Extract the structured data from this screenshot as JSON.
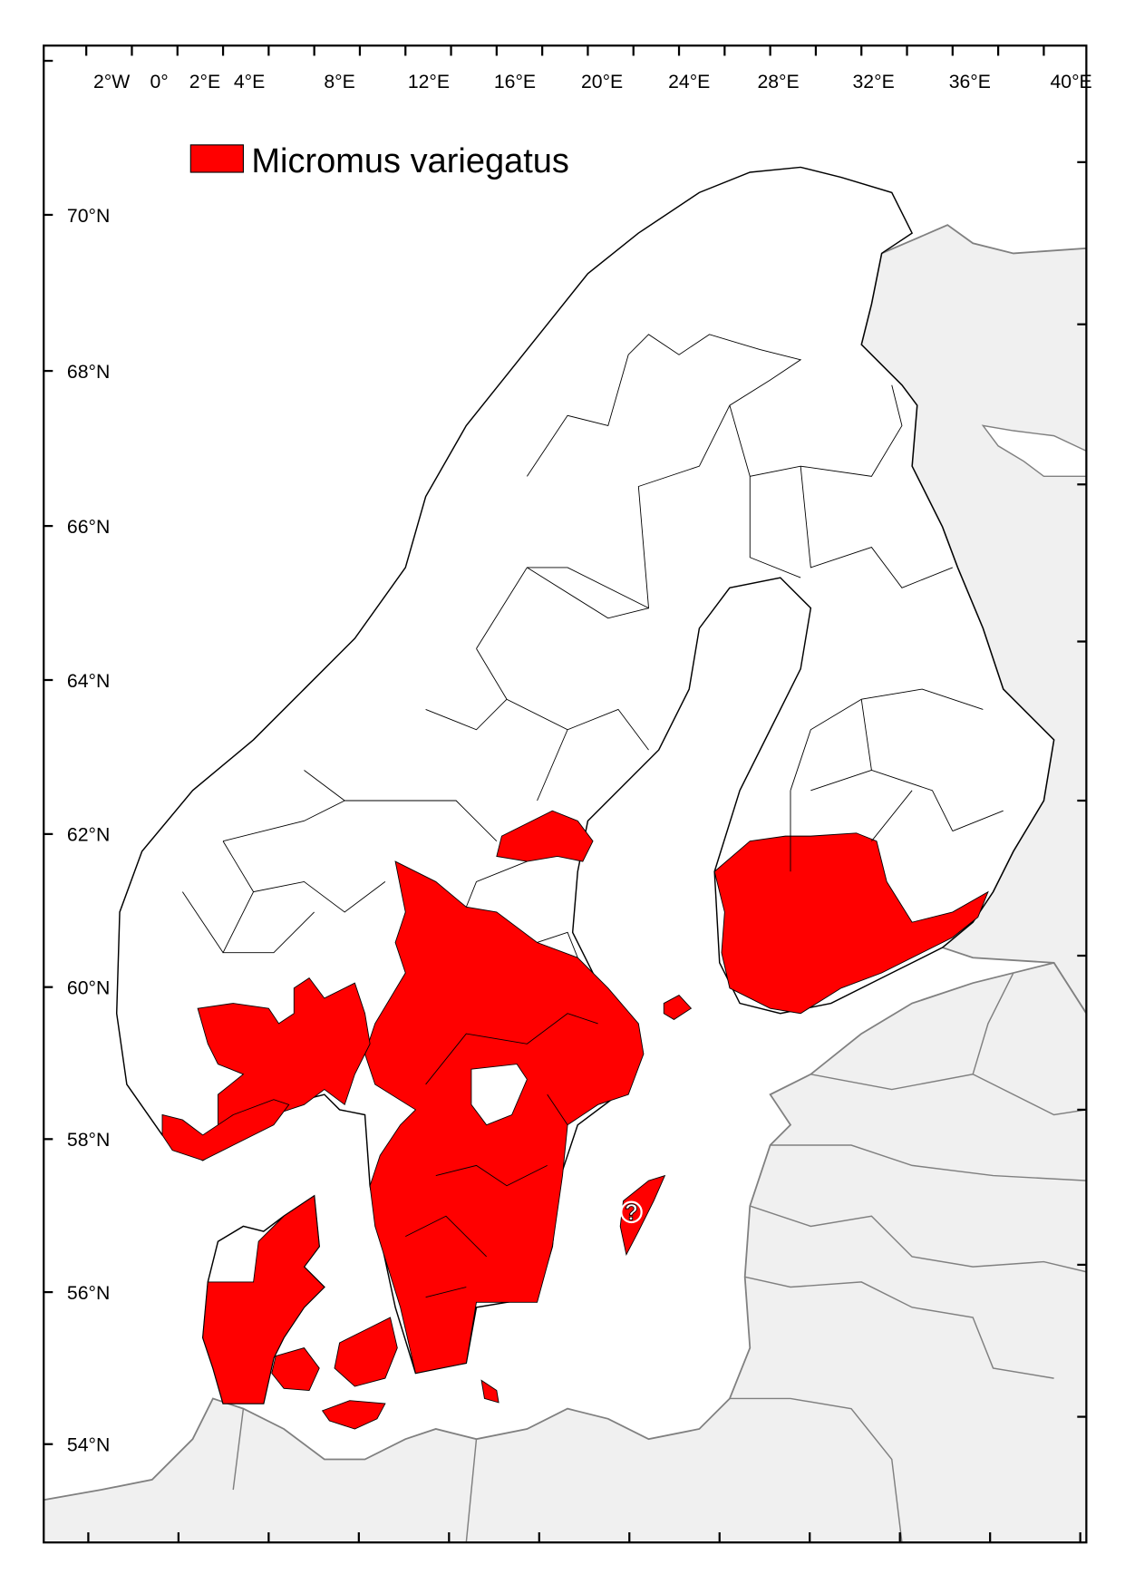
{
  "legend": {
    "label": "Micromus variegatus",
    "color": "#ff0000"
  },
  "lon_labels": [
    "2°W",
    "0°",
    "2°E",
    "4°E",
    "8°E",
    "12°E",
    "16°E",
    "20°E",
    "24°E",
    "28°E",
    "32°E",
    "36°E",
    "40°E"
  ],
  "lat_labels": [
    "70°N",
    "68°N",
    "66°N",
    "64°N",
    "62°N",
    "60°N",
    "58°N",
    "56°N",
    "54°N"
  ],
  "uncertain_marker": "?",
  "colors": {
    "present": "#ff0000",
    "land": "#ffffff",
    "outside_land": "#f0f0f0",
    "border_outside": "#808080"
  }
}
